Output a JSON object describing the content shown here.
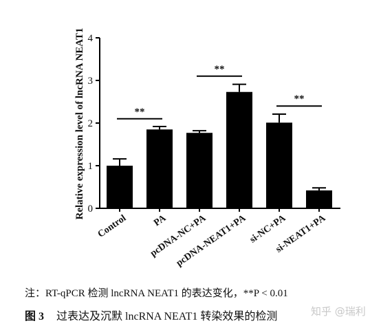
{
  "chart_data": {
    "type": "bar",
    "ylabel": "Relative expression level of lncRNA NEAT1",
    "xlabel": "",
    "ylim": [
      0,
      4
    ],
    "yticks": [
      "0",
      "1",
      "2",
      "3",
      "4"
    ],
    "categories": [
      "Control",
      "PA",
      "pcDNA-NC+PA",
      "pcDNA-NEAT1+PA",
      "si-NC+PA",
      "si-NEAT1+PA"
    ],
    "values": [
      1.0,
      1.85,
      1.77,
      2.73,
      2.01,
      0.42
    ],
    "errors": [
      0.16,
      0.07,
      0.05,
      0.18,
      0.2,
      0.06
    ],
    "bar_color": "#000000",
    "significance": [
      {
        "from": 0,
        "to": 1,
        "label": "**",
        "y": 2.1
      },
      {
        "from": 2,
        "to": 3,
        "label": "**",
        "y": 3.1
      },
      {
        "from": 4,
        "to": 5,
        "label": "**",
        "y": 2.4
      }
    ]
  },
  "note": "注：RT-qPCR 检测 lncRNA NEAT1 的表达变化，**P < 0.01",
  "caption": {
    "label": "图 3",
    "text": "过表达及沉默 lncRNA NEAT1 转染效果的检测"
  },
  "watermark": "知乎 @瑞利"
}
